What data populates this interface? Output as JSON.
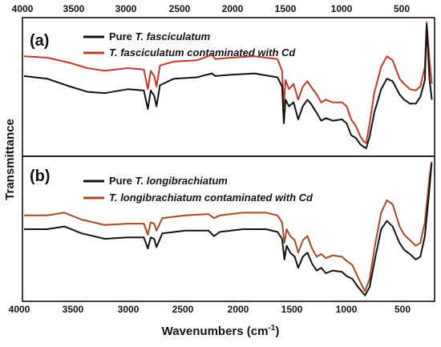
{
  "chart_data": {
    "type": "line",
    "xlabel_main": "Wavenumbers (cm",
    "xlabel_sup": "-1",
    "xlabel_end": ")",
    "ylabel": "Transmittance",
    "xlim": [
      4000,
      450
    ],
    "x_ticks": [
      "4000",
      "3500",
      "3000",
      "2500",
      "2000",
      "1500",
      "1000",
      "500"
    ],
    "colors": {
      "pure": "#111111",
      "cd_a": "#c0392b",
      "cd_b": "#a04a26"
    },
    "panels": [
      {
        "label": "(a)",
        "legend": [
          {
            "prefix": "Pure ",
            "italic": "T. fasciculatum",
            "suffix": ""
          },
          {
            "prefix": "",
            "italic": "T. fasciculatum contaminated with Cd",
            "suffix": ""
          }
        ],
        "series": [
          {
            "name": "Pure T. fasciculatum",
            "points": [
              [
                4000,
                0.58
              ],
              [
                3800,
                0.56
              ],
              [
                3600,
                0.5
              ],
              [
                3450,
                0.46
              ],
              [
                3300,
                0.45
              ],
              [
                3100,
                0.48
              ],
              [
                2960,
                0.47
              ],
              [
                2925,
                0.33
              ],
              [
                2900,
                0.47
              ],
              [
                2870,
                0.43
              ],
              [
                2850,
                0.35
              ],
              [
                2820,
                0.51
              ],
              [
                2700,
                0.56
              ],
              [
                2500,
                0.57
              ],
              [
                2370,
                0.6
              ],
              [
                2340,
                0.58
              ],
              [
                2200,
                0.59
              ],
              [
                2000,
                0.6
              ],
              [
                1800,
                0.57
              ],
              [
                1760,
                0.5
              ],
              [
                1745,
                0.22
              ],
              [
                1730,
                0.4
              ],
              [
                1700,
                0.35
              ],
              [
                1660,
                0.38
              ],
              [
                1620,
                0.25
              ],
              [
                1580,
                0.35
              ],
              [
                1540,
                0.4
              ],
              [
                1510,
                0.37
              ],
              [
                1460,
                0.3
              ],
              [
                1420,
                0.24
              ],
              [
                1380,
                0.26
              ],
              [
                1320,
                0.24
              ],
              [
                1240,
                0.25
              ],
              [
                1200,
                0.22
              ],
              [
                1160,
                0.13
              ],
              [
                1120,
                0.11
              ],
              [
                1080,
                0.06
              ],
              [
                1050,
                0.04
              ],
              [
                1030,
                0.03
              ],
              [
                1000,
                0.12
              ],
              [
                960,
                0.3
              ],
              [
                900,
                0.48
              ],
              [
                850,
                0.56
              ],
              [
                800,
                0.54
              ],
              [
                740,
                0.44
              ],
              [
                700,
                0.4
              ],
              [
                650,
                0.37
              ],
              [
                600,
                0.37
              ],
              [
                560,
                0.42
              ],
              [
                520,
                0.55
              ],
              [
                505,
                0.97
              ],
              [
                480,
                0.55
              ],
              [
                460,
                0.4
              ]
            ]
          },
          {
            "name": "T. fasciculatum contaminated with Cd",
            "points": [
              [
                4000,
                0.73
              ],
              [
                3800,
                0.72
              ],
              [
                3600,
                0.68
              ],
              [
                3450,
                0.64
              ],
              [
                3300,
                0.62
              ],
              [
                3100,
                0.64
              ],
              [
                2960,
                0.63
              ],
              [
                2925,
                0.48
              ],
              [
                2900,
                0.62
              ],
              [
                2870,
                0.58
              ],
              [
                2850,
                0.5
              ],
              [
                2820,
                0.66
              ],
              [
                2700,
                0.69
              ],
              [
                2500,
                0.7
              ],
              [
                2370,
                0.74
              ],
              [
                2340,
                0.71
              ],
              [
                2200,
                0.72
              ],
              [
                2000,
                0.73
              ],
              [
                1800,
                0.71
              ],
              [
                1760,
                0.62
              ],
              [
                1745,
                0.35
              ],
              [
                1730,
                0.55
              ],
              [
                1700,
                0.48
              ],
              [
                1660,
                0.52
              ],
              [
                1620,
                0.4
              ],
              [
                1580,
                0.5
              ],
              [
                1540,
                0.54
              ],
              [
                1510,
                0.5
              ],
              [
                1460,
                0.44
              ],
              [
                1420,
                0.38
              ],
              [
                1380,
                0.4
              ],
              [
                1320,
                0.38
              ],
              [
                1240,
                0.38
              ],
              [
                1200,
                0.35
              ],
              [
                1160,
                0.25
              ],
              [
                1120,
                0.2
              ],
              [
                1080,
                0.12
              ],
              [
                1050,
                0.08
              ],
              [
                1030,
                0.07
              ],
              [
                1000,
                0.22
              ],
              [
                960,
                0.45
              ],
              [
                900,
                0.65
              ],
              [
                850,
                0.73
              ],
              [
                800,
                0.7
              ],
              [
                740,
                0.56
              ],
              [
                700,
                0.52
              ],
              [
                650,
                0.48
              ],
              [
                600,
                0.47
              ],
              [
                560,
                0.5
              ],
              [
                520,
                0.65
              ],
              [
                505,
                0.99
              ],
              [
                480,
                0.7
              ],
              [
                460,
                0.52
              ]
            ]
          }
        ]
      },
      {
        "label": "(b)",
        "legend": [
          {
            "prefix": "Pure ",
            "italic": "T. longibrachiatum",
            "suffix": ""
          },
          {
            "prefix": "",
            "italic": "T. longibrachiatum contaminated with Cd",
            "suffix": ""
          }
        ],
        "series": [
          {
            "name": "Pure T. longibrachiatum",
            "points": [
              [
                4000,
                0.5
              ],
              [
                3800,
                0.5
              ],
              [
                3650,
                0.52
              ],
              [
                3500,
                0.47
              ],
              [
                3300,
                0.43
              ],
              [
                3100,
                0.44
              ],
              [
                2960,
                0.44
              ],
              [
                2925,
                0.36
              ],
              [
                2900,
                0.44
              ],
              [
                2870,
                0.43
              ],
              [
                2850,
                0.37
              ],
              [
                2800,
                0.47
              ],
              [
                2600,
                0.49
              ],
              [
                2400,
                0.49
              ],
              [
                2350,
                0.45
              ],
              [
                2300,
                0.48
              ],
              [
                2100,
                0.5
              ],
              [
                1900,
                0.5
              ],
              [
                1800,
                0.48
              ],
              [
                1760,
                0.43
              ],
              [
                1740,
                0.28
              ],
              [
                1720,
                0.38
              ],
              [
                1690,
                0.33
              ],
              [
                1650,
                0.3
              ],
              [
                1620,
                0.22
              ],
              [
                1580,
                0.3
              ],
              [
                1540,
                0.33
              ],
              [
                1500,
                0.25
              ],
              [
                1460,
                0.2
              ],
              [
                1420,
                0.22
              ],
              [
                1380,
                0.18
              ],
              [
                1320,
                0.2
              ],
              [
                1240,
                0.19
              ],
              [
                1200,
                0.16
              ],
              [
                1150,
                0.14
              ],
              [
                1100,
                0.08
              ],
              [
                1060,
                0.04
              ],
              [
                1040,
                0.02
              ],
              [
                1000,
                0.08
              ],
              [
                950,
                0.3
              ],
              [
                900,
                0.5
              ],
              [
                850,
                0.56
              ],
              [
                800,
                0.52
              ],
              [
                740,
                0.4
              ],
              [
                700,
                0.35
              ],
              [
                650,
                0.32
              ],
              [
                600,
                0.28
              ],
              [
                560,
                0.3
              ],
              [
                520,
                0.45
              ],
              [
                480,
                0.8
              ],
              [
                462,
                0.98
              ]
            ]
          },
          {
            "name": "T. longibrachiatum contaminated with Cd",
            "points": [
              [
                4000,
                0.6
              ],
              [
                3800,
                0.6
              ],
              [
                3650,
                0.62
              ],
              [
                3500,
                0.57
              ],
              [
                3300,
                0.53
              ],
              [
                3100,
                0.54
              ],
              [
                2960,
                0.54
              ],
              [
                2925,
                0.46
              ],
              [
                2900,
                0.55
              ],
              [
                2870,
                0.54
              ],
              [
                2850,
                0.49
              ],
              [
                2800,
                0.58
              ],
              [
                2600,
                0.6
              ],
              [
                2400,
                0.61
              ],
              [
                2350,
                0.58
              ],
              [
                2300,
                0.6
              ],
              [
                2100,
                0.62
              ],
              [
                1900,
                0.62
              ],
              [
                1800,
                0.6
              ],
              [
                1760,
                0.55
              ],
              [
                1740,
                0.4
              ],
              [
                1720,
                0.5
              ],
              [
                1690,
                0.45
              ],
              [
                1650,
                0.42
              ],
              [
                1620,
                0.33
              ],
              [
                1580,
                0.42
              ],
              [
                1540,
                0.45
              ],
              [
                1500,
                0.36
              ],
              [
                1460,
                0.3
              ],
              [
                1420,
                0.32
              ],
              [
                1380,
                0.29
              ],
              [
                1320,
                0.31
              ],
              [
                1240,
                0.3
              ],
              [
                1200,
                0.27
              ],
              [
                1150,
                0.24
              ],
              [
                1100,
                0.15
              ],
              [
                1060,
                0.08
              ],
              [
                1040,
                0.05
              ],
              [
                1000,
                0.14
              ],
              [
                950,
                0.4
              ],
              [
                900,
                0.62
              ],
              [
                850,
                0.71
              ],
              [
                800,
                0.68
              ],
              [
                740,
                0.52
              ],
              [
                700,
                0.46
              ],
              [
                650,
                0.42
              ],
              [
                600,
                0.38
              ],
              [
                560,
                0.4
              ],
              [
                520,
                0.55
              ],
              [
                480,
                0.88
              ],
              [
                462,
                0.99
              ]
            ]
          }
        ]
      }
    ]
  }
}
